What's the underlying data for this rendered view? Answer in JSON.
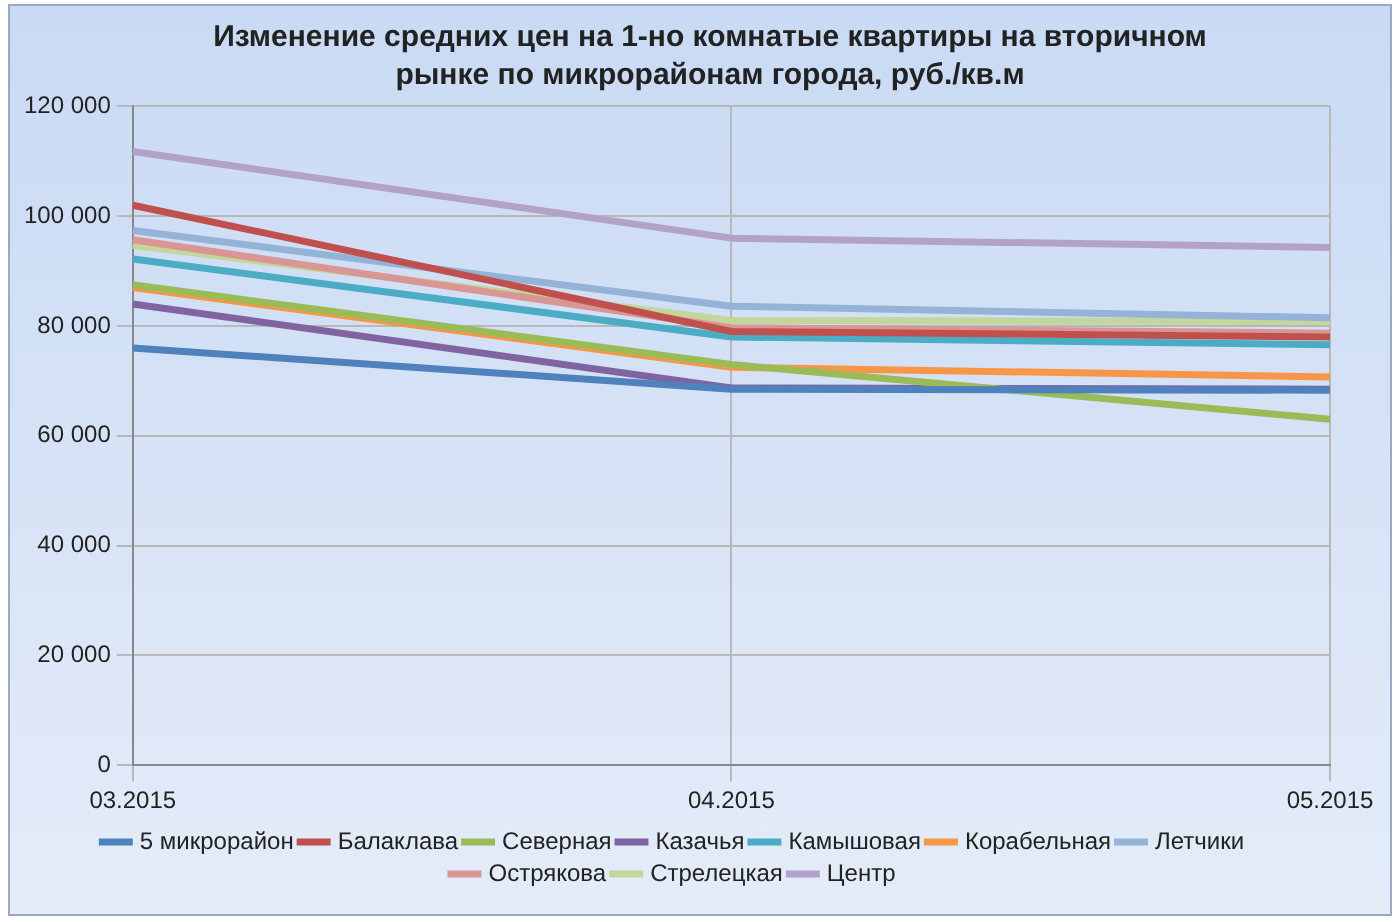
{
  "chart_data": {
    "type": "line",
    "title": "Изменение  средних цен на 1-но комнатые квартиры на вторичном рынке по микрорайонам города,  руб./кв.м",
    "categories": [
      "03.2015",
      "04.2015",
      "05.2015"
    ],
    "series": [
      {
        "name": "5 микрорайон",
        "color": "#4f81bd",
        "values": [
          76000,
          68500,
          68300
        ]
      },
      {
        "name": "Балаклава",
        "color": "#c0504d",
        "values": [
          102000,
          79000,
          78000
        ]
      },
      {
        "name": "Северная",
        "color": "#9bbb59",
        "values": [
          87500,
          73000,
          63000
        ]
      },
      {
        "name": "Казачья",
        "color": "#8064a2",
        "values": [
          84000,
          68700,
          68500
        ]
      },
      {
        "name": "Камышовая",
        "color": "#4bacc6",
        "values": [
          92200,
          78000,
          76600
        ]
      },
      {
        "name": "Корабельная",
        "color": "#f79646",
        "values": [
          87000,
          72500,
          70700
        ]
      },
      {
        "name": "Летчики",
        "color": "#95b3d7",
        "values": [
          97400,
          83600,
          81500
        ]
      },
      {
        "name": "Острякова",
        "color": "#d99694",
        "values": [
          95700,
          79700,
          78700
        ]
      },
      {
        "name": "Стрелецкая",
        "color": "#c3d69b",
        "values": [
          94700,
          81000,
          80800
        ]
      },
      {
        "name": "Центр",
        "color": "#b3a2c7",
        "values": [
          111800,
          96000,
          94300
        ]
      }
    ],
    "ylim": [
      0,
      120000
    ],
    "yticks": [
      {
        "value": 0,
        "label": "0"
      },
      {
        "value": 20000,
        "label": "20 000"
      },
      {
        "value": 40000,
        "label": "40 000"
      },
      {
        "value": 60000,
        "label": "60 000"
      },
      {
        "value": 80000,
        "label": "80 000"
      },
      {
        "value": 100000,
        "label": "100 000"
      },
      {
        "value": 120000,
        "label": "120 000"
      }
    ],
    "grid": true,
    "legend": "bottom",
    "marker": "none",
    "line_style": "solid"
  }
}
